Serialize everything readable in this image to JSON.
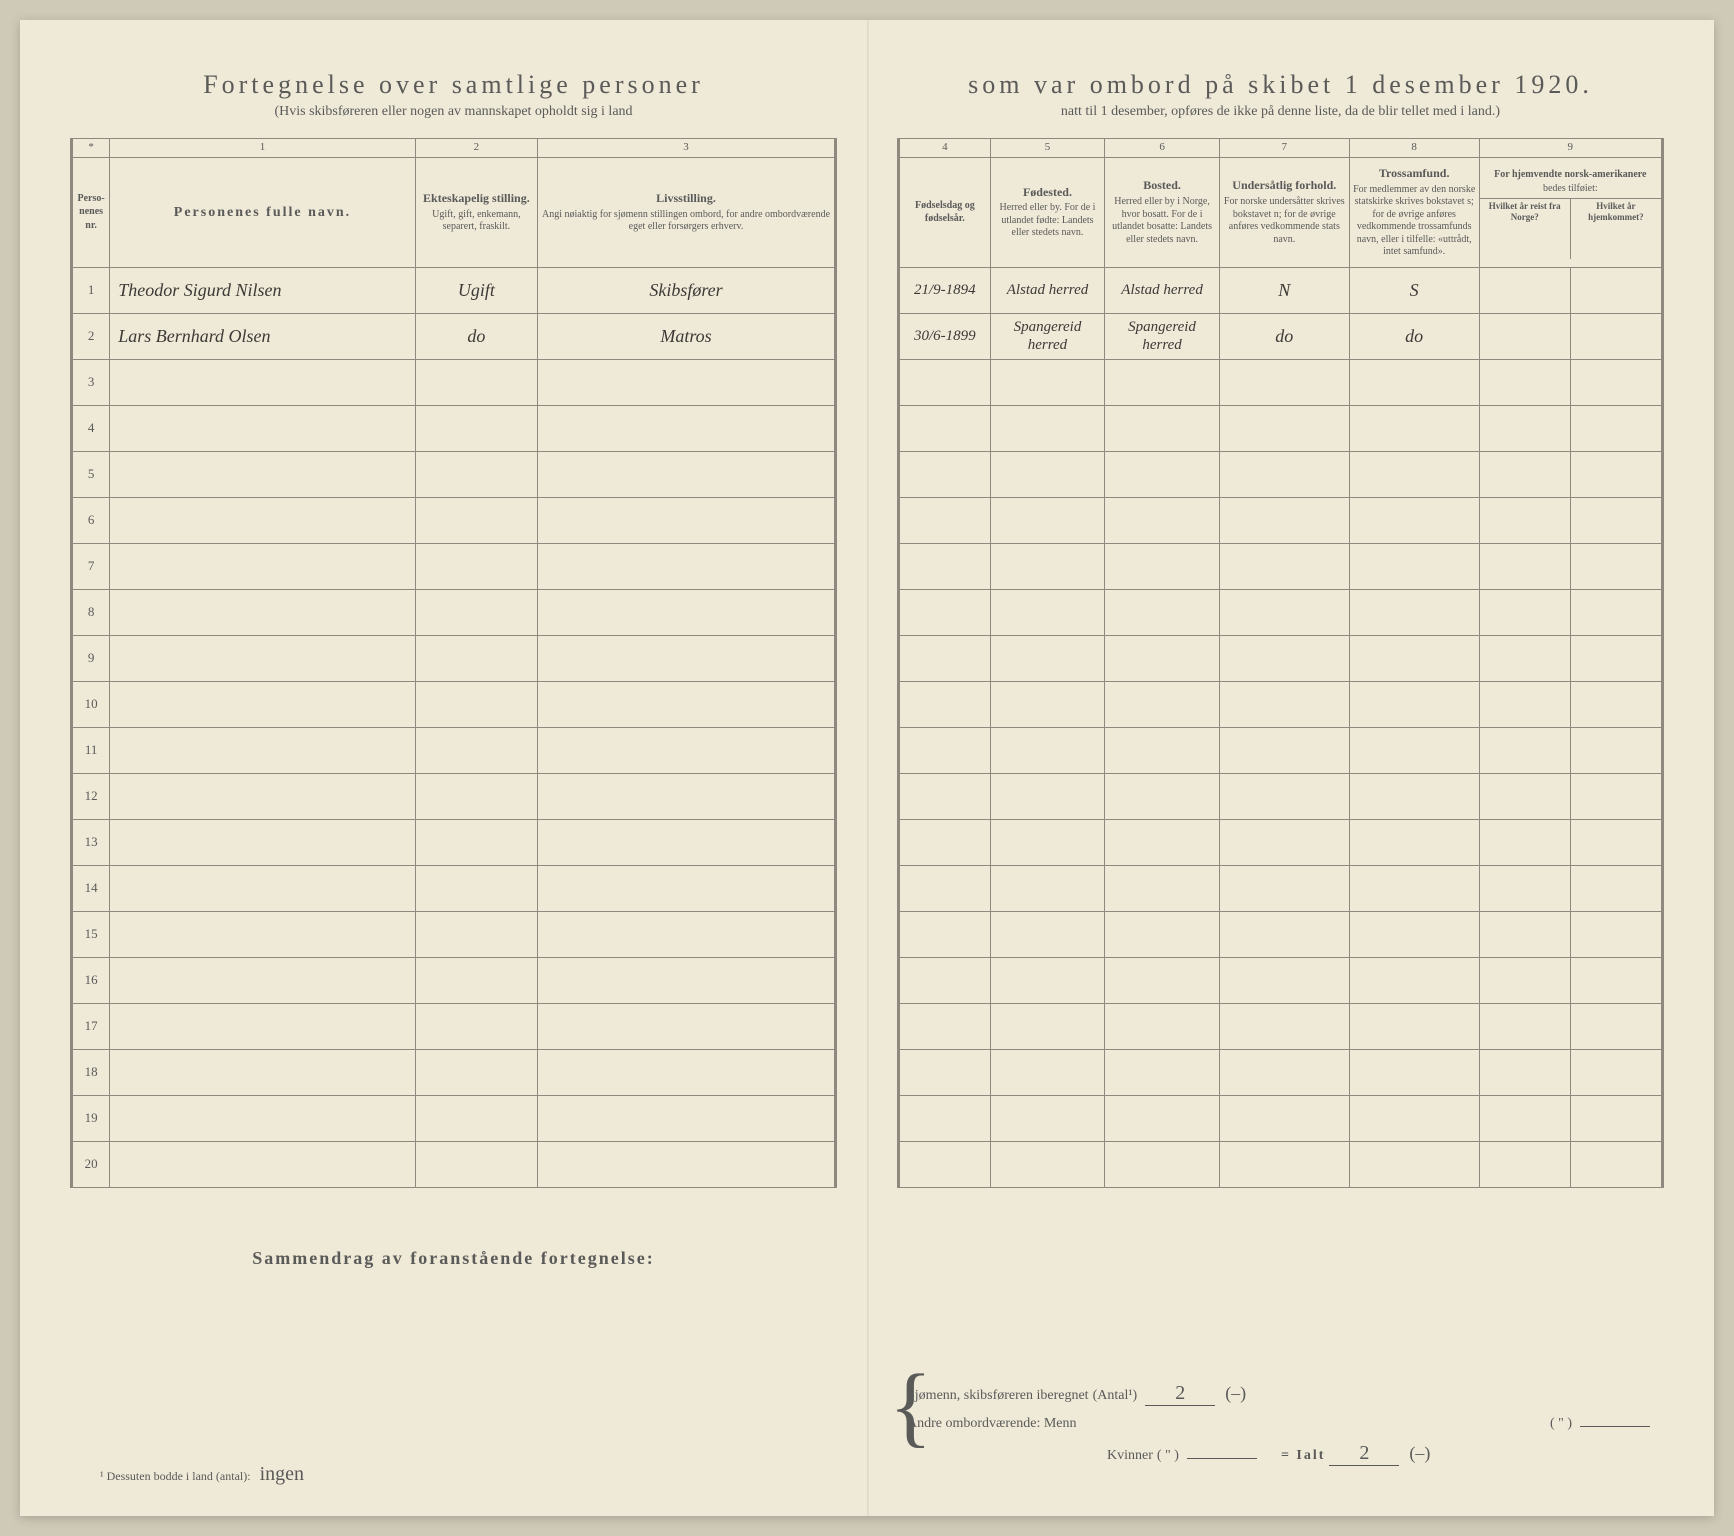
{
  "colors": {
    "background": "#cfcab8",
    "paper": "#efe9d8",
    "ink": "#5a5a58",
    "rule": "#8d897e",
    "handwriting": "#3d3a36"
  },
  "title_left": "Fortegnelse over samtlige personer",
  "title_right": "som var ombord på skibet 1 desember 1920.",
  "subtitle_left": "(Hvis skibsføreren eller nogen av mannskapet opholdt sig i land",
  "subtitle_right": "natt til 1 desember, opføres de ikke på denne liste, da de blir tellet med i land.)",
  "col_numbers_left": [
    "*",
    "1",
    "2",
    "3"
  ],
  "col_numbers_right": [
    "4",
    "5",
    "6",
    "7",
    "8",
    "9"
  ],
  "headers_left": {
    "nr": {
      "main": "Perso-\nnenes\nnr."
    },
    "name": {
      "main": "Personenes fulle navn."
    },
    "marital": {
      "main": "Ekteskapelig stilling.",
      "sub": "Ugift, gift, enkemann, separert, fraskilt."
    },
    "occupation": {
      "main": "Livsstilling.",
      "sub": "Angi nøiaktig for sjømenn stillingen ombord, for andre ombordværende eget eller forsørgers erhverv."
    }
  },
  "headers_right": {
    "birthdate": {
      "main": "Fødselsdag og fødselsår."
    },
    "birthplace": {
      "main": "Fødested.",
      "sub": "Herred eller by. For de i utlandet fødte: Landets eller stedets navn."
    },
    "residence": {
      "main": "Bosted.",
      "sub": "Herred eller by i Norge, hvor bosatt. For de i utlandet bosatte: Landets eller stedets navn."
    },
    "nationality": {
      "main": "Undersåtlig forhold.",
      "sub": "For norske undersåtter skrives bokstavet n; for de øvrige anføres vedkommende stats navn."
    },
    "religion": {
      "main": "Trossamfund.",
      "sub": "For medlemmer av den norske statskirke skrives bokstavet s; for de øvrige anføres vedkommende trossamfunds navn, eller i tilfelle: «uttrådt, intet samfund»."
    },
    "emigrant": {
      "main": "For hjemvendte norsk-amerikanere",
      "sub": "bedes tilføiet:",
      "col1": "Hvilket år reist fra Norge?",
      "col2": "Hvilket år hjemkommet?"
    }
  },
  "rows": [
    {
      "nr": "1",
      "name": "Theodor Sigurd Nilsen",
      "marital": "Ugift",
      "occupation": "Skibsfører",
      "birthdate": "21/9-1894",
      "birthplace": "Alstad herred",
      "residence": "Alstad herred",
      "nationality": "N",
      "religion": "S",
      "em1": "",
      "em2": ""
    },
    {
      "nr": "2",
      "name": "Lars Bernhard Olsen",
      "marital": "do",
      "occupation": "Matros",
      "birthdate": "30/6-1899",
      "birthplace": "Spangereid herred",
      "residence": "Spangereid herred",
      "nationality": "do",
      "religion": "do",
      "em1": "",
      "em2": ""
    },
    {
      "nr": "3"
    },
    {
      "nr": "4"
    },
    {
      "nr": "5"
    },
    {
      "nr": "6"
    },
    {
      "nr": "7"
    },
    {
      "nr": "8"
    },
    {
      "nr": "9"
    },
    {
      "nr": "10"
    },
    {
      "nr": "11"
    },
    {
      "nr": "12"
    },
    {
      "nr": "13"
    },
    {
      "nr": "14"
    },
    {
      "nr": "15"
    },
    {
      "nr": "16"
    },
    {
      "nr": "17"
    },
    {
      "nr": "18"
    },
    {
      "nr": "19"
    },
    {
      "nr": "20"
    }
  ],
  "summary_title": "Sammendrag av foranstående fortegnelse:",
  "footnote_label": "¹ Dessuten bodde i land (antal):",
  "footnote_value": "ingen",
  "footer_lines": {
    "l1_label": "Sjømenn, skibsføreren iberegnet",
    "l1_paren": "(Antal¹)",
    "l1_val": "2",
    "l1_tail": "(–)",
    "l2_label": "Andre ombordværende: Menn",
    "l2_paren": "( \" )",
    "l2_val": "",
    "l3_label": "Kvinner",
    "l3_paren": "( \" )",
    "l3_val": "",
    "total_label": "= Ialt",
    "total_val": "2",
    "total_tail": "(–)"
  }
}
